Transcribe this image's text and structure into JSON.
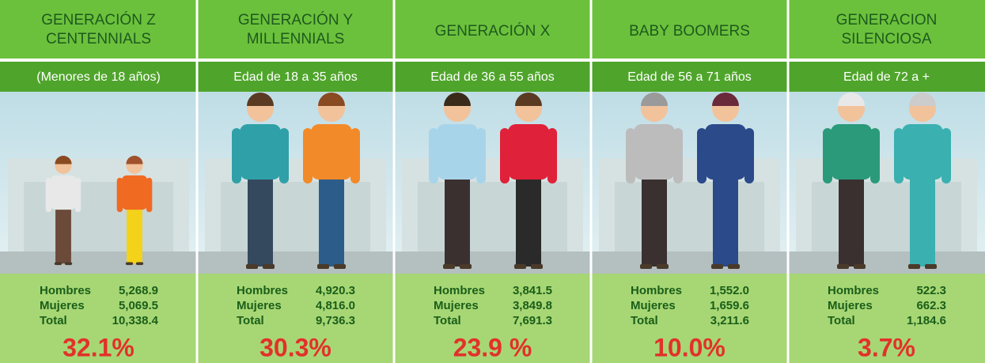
{
  "columns": [
    {
      "title": [
        "GENERACIÓN Z",
        "CENTENNIALS"
      ],
      "subtitle": "(Menores de 18 años)",
      "rows": [
        {
          "label": "Hombres",
          "value": "5,268.9"
        },
        {
          "label": "Mujeres",
          "value": "5,069.5"
        },
        {
          "label": "Total",
          "value": "10,338.4"
        }
      ],
      "percent": "32.1%"
    },
    {
      "title": [
        "GENERACIÓN Y",
        "MILLENNIALS"
      ],
      "subtitle": "Edad de 18 a 35 años",
      "rows": [
        {
          "label": "Hombres",
          "value": "4,920.3"
        },
        {
          "label": "Mujeres",
          "value": "4,816.0"
        },
        {
          "label": "Total",
          "value": "9,736.3"
        }
      ],
      "percent": "30.3%"
    },
    {
      "title": [
        "GENERACIÓN X"
      ],
      "subtitle": "Edad de 36 a 55 años",
      "rows": [
        {
          "label": "Hombres",
          "value": "3,841.5"
        },
        {
          "label": "Mujeres",
          "value": "3,849.8"
        },
        {
          "label": "Total",
          "value": "7,691.3"
        }
      ],
      "percent": "23.9 %"
    },
    {
      "title": [
        "BABY BOOMERS"
      ],
      "subtitle": "Edad de 56 a 71 años",
      "rows": [
        {
          "label": "Hombres",
          "value": "1,552.0"
        },
        {
          "label": "Mujeres",
          "value": "1,659.6"
        },
        {
          "label": "Total",
          "value": "3,211.6"
        }
      ],
      "percent": "10.0%"
    },
    {
      "title": [
        "GENERACION",
        "SILENCIOSA"
      ],
      "subtitle": "Edad de 72 a +",
      "rows": [
        {
          "label": "Hombres",
          "value": "522.3"
        },
        {
          "label": "Mujeres",
          "value": "662.3"
        },
        {
          "label": "Total",
          "value": "1,184.6"
        }
      ],
      "percent": "3.7%"
    }
  ]
}
